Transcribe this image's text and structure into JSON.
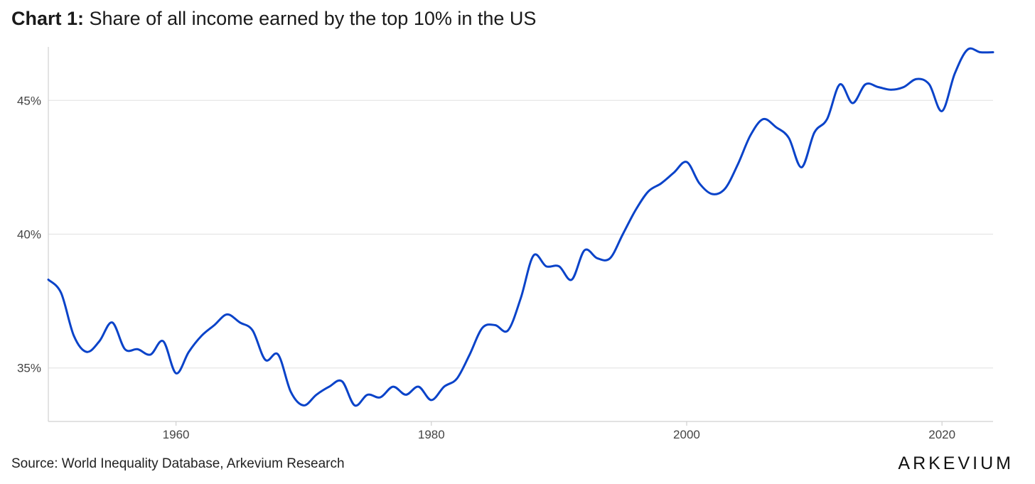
{
  "title": {
    "lead": "Chart 1:",
    "rest": "Share of all income earned by the top 10% in the US"
  },
  "source": "Source: World Inequality Database, Arkevium Research",
  "brand": "ARKEVIUM",
  "colors": {
    "line": "#0a43c9",
    "grid": "#e6e6e6",
    "axis": "#d0d0d0",
    "text": "#444444"
  },
  "chart_data": {
    "type": "line",
    "title": "Share of all income earned by the top 10% in the US",
    "xlabel": "",
    "ylabel": "",
    "xlim": [
      1950,
      2024
    ],
    "ylim": [
      33,
      47
    ],
    "x_ticks": [
      1960,
      1980,
      2000,
      2020
    ],
    "x_tick_labels": [
      "1960",
      "1980",
      "2000",
      "2020"
    ],
    "y_ticks": [
      35,
      40,
      45
    ],
    "y_tick_labels": [
      "35%",
      "40%",
      "45%"
    ],
    "grid": "horizontal",
    "legend": "none",
    "series": [
      {
        "values": [
          [
            1950,
            38.3
          ],
          [
            1951,
            37.8
          ],
          [
            1952,
            36.2
          ],
          [
            1953,
            35.6
          ],
          [
            1954,
            36.0
          ],
          [
            1955,
            36.7
          ],
          [
            1956,
            35.7
          ],
          [
            1957,
            35.7
          ],
          [
            1958,
            35.5
          ],
          [
            1959,
            36.0
          ],
          [
            1960,
            34.8
          ],
          [
            1961,
            35.6
          ],
          [
            1962,
            36.2
          ],
          [
            1963,
            36.6
          ],
          [
            1964,
            37.0
          ],
          [
            1965,
            36.7
          ],
          [
            1966,
            36.4
          ],
          [
            1967,
            35.3
          ],
          [
            1968,
            35.5
          ],
          [
            1969,
            34.1
          ],
          [
            1970,
            33.6
          ],
          [
            1971,
            34.0
          ],
          [
            1972,
            34.3
          ],
          [
            1973,
            34.5
          ],
          [
            1974,
            33.6
          ],
          [
            1975,
            34.0
          ],
          [
            1976,
            33.9
          ],
          [
            1977,
            34.3
          ],
          [
            1978,
            34.0
          ],
          [
            1979,
            34.3
          ],
          [
            1980,
            33.8
          ],
          [
            1981,
            34.3
          ],
          [
            1982,
            34.6
          ],
          [
            1983,
            35.5
          ],
          [
            1984,
            36.5
          ],
          [
            1985,
            36.6
          ],
          [
            1986,
            36.4
          ],
          [
            1987,
            37.6
          ],
          [
            1988,
            39.2
          ],
          [
            1989,
            38.8
          ],
          [
            1990,
            38.8
          ],
          [
            1991,
            38.3
          ],
          [
            1992,
            39.4
          ],
          [
            1993,
            39.1
          ],
          [
            1994,
            39.1
          ],
          [
            1995,
            40.0
          ],
          [
            1996,
            40.9
          ],
          [
            1997,
            41.6
          ],
          [
            1998,
            41.9
          ],
          [
            1999,
            42.3
          ],
          [
            2000,
            42.7
          ],
          [
            2001,
            41.9
          ],
          [
            2002,
            41.5
          ],
          [
            2003,
            41.7
          ],
          [
            2004,
            42.6
          ],
          [
            2005,
            43.7
          ],
          [
            2006,
            44.3
          ],
          [
            2007,
            44.0
          ],
          [
            2008,
            43.6
          ],
          [
            2009,
            42.5
          ],
          [
            2010,
            43.8
          ],
          [
            2011,
            44.3
          ],
          [
            2012,
            45.6
          ],
          [
            2013,
            44.9
          ],
          [
            2014,
            45.6
          ],
          [
            2015,
            45.5
          ],
          [
            2016,
            45.4
          ],
          [
            2017,
            45.5
          ],
          [
            2018,
            45.8
          ],
          [
            2019,
            45.6
          ],
          [
            2020,
            44.6
          ],
          [
            2021,
            46.0
          ],
          [
            2022,
            46.9
          ],
          [
            2023,
            46.8
          ],
          [
            2024,
            46.8
          ]
        ]
      }
    ]
  }
}
